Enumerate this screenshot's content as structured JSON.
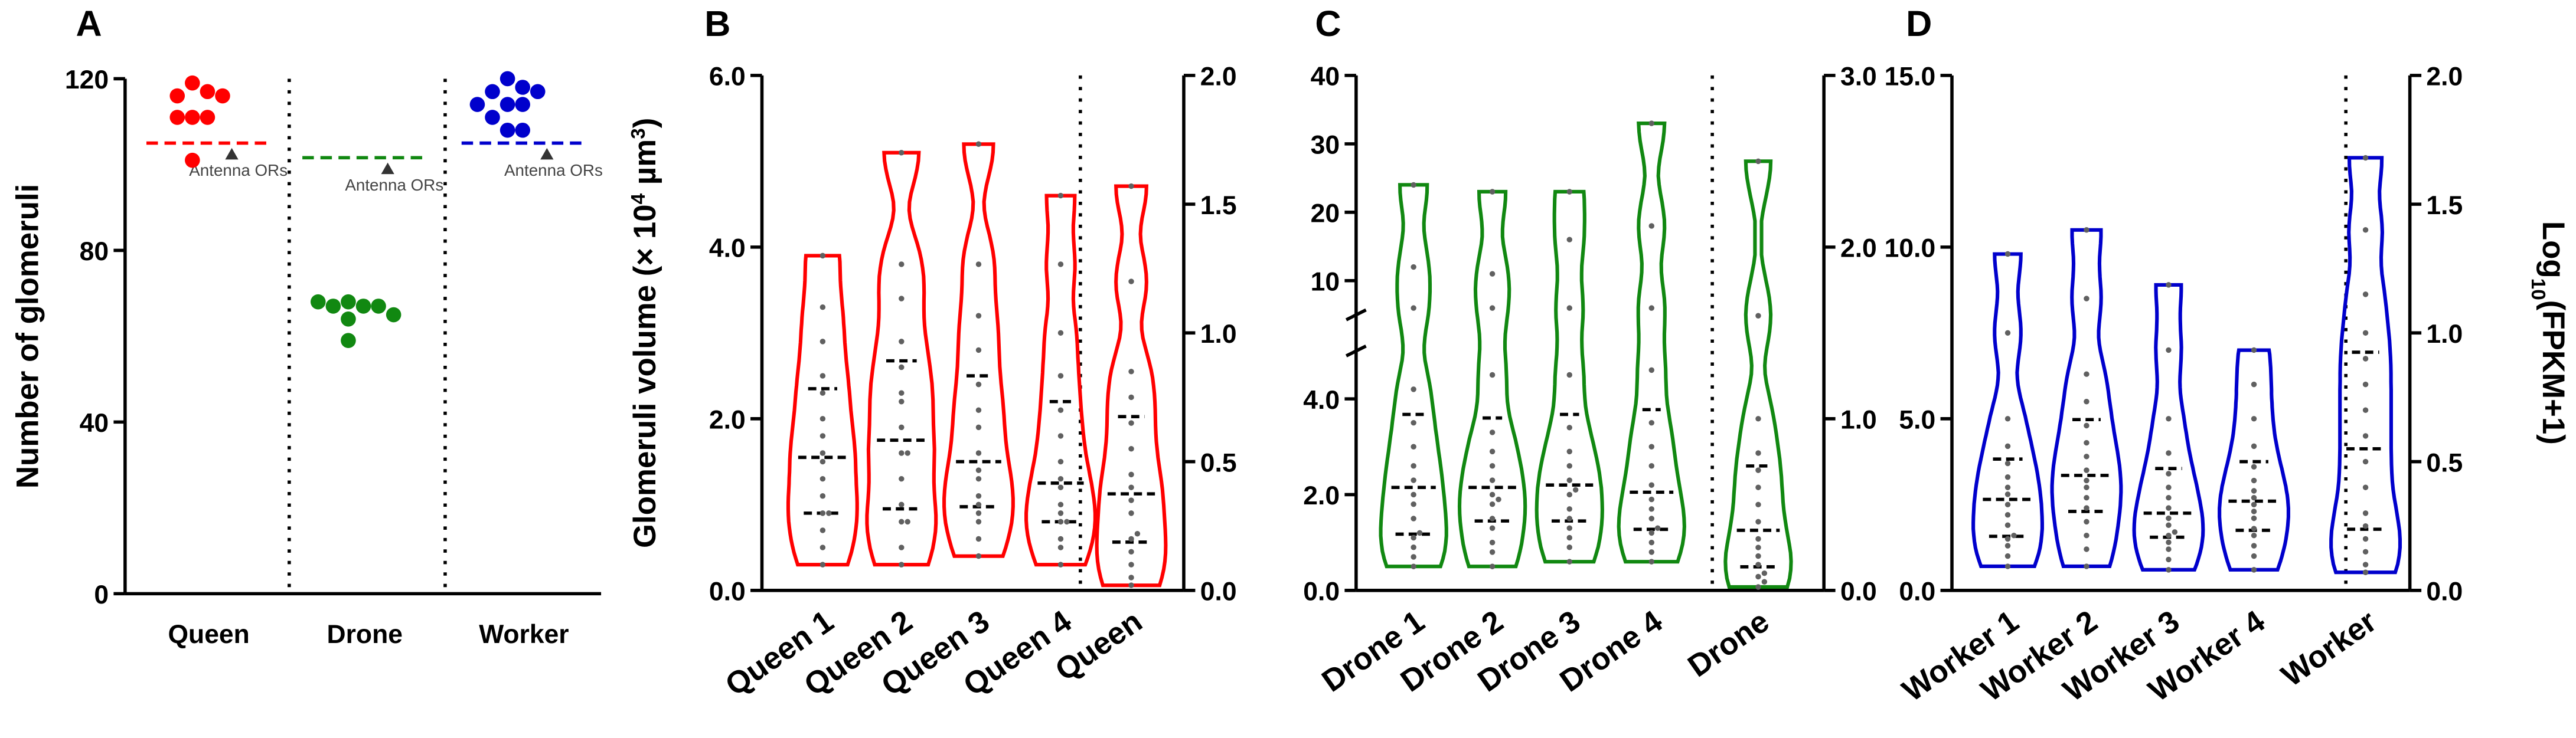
{
  "chart_data": [
    {
      "type": "dot",
      "panel": "A",
      "ylabel": "Number of glomeruli",
      "ylim": [
        0,
        120
      ],
      "yticks": [
        0,
        40,
        80,
        120
      ],
      "groups": [
        {
          "name": "Queen",
          "color": "#ff0000",
          "values": [
            119,
            117,
            116,
            116,
            111,
            111,
            111,
            101
          ],
          "reference": 105,
          "reference_label": "Antenna ORs"
        },
        {
          "name": "Drone",
          "color": "#118811",
          "values": [
            68,
            67,
            67,
            67,
            68,
            65,
            64,
            59
          ],
          "reference": 101.6,
          "reference_label": "Antenna ORs"
        },
        {
          "name": "Worker",
          "color": "#0000cc",
          "values": [
            120,
            118,
            117,
            117,
            114,
            114,
            114,
            111,
            108,
            108
          ],
          "reference": 105,
          "reference_label": "Antenna ORs"
        }
      ]
    },
    {
      "type": "violin",
      "panel": "B",
      "color": "#ff0000",
      "ylabel": [
        "Glomeruli volume (× 10",
        "4",
        " µm",
        "3",
        ")"
      ],
      "ylim": [
        0,
        6
      ],
      "yticks": [
        {
          "value": 0,
          "label": "0.0"
        },
        {
          "value": 2,
          "label": "2.0"
        },
        {
          "value": 4,
          "label": "4.0"
        },
        {
          "value": 6,
          "label": "6.0"
        }
      ],
      "y2lim": [
        0,
        2
      ],
      "y2ticks": [
        {
          "value": 0,
          "label": "0.0"
        },
        {
          "value": 0.5,
          "label": "0.5"
        },
        {
          "value": 1,
          "label": "1.0"
        },
        {
          "value": 1.5,
          "label": "1.5"
        },
        {
          "value": 2,
          "label": "2.0"
        }
      ],
      "series": [
        {
          "name": "Queen 1",
          "values": [
            0.3,
            0.5,
            0.7,
            0.9,
            0.9,
            1.1,
            1.3,
            1.5,
            1.6,
            1.8,
            2.0,
            2.3,
            2.5,
            2.9,
            3.3,
            3.9
          ]
        },
        {
          "name": "Queen 2",
          "values": [
            0.3,
            0.5,
            0.8,
            0.8,
            1.0,
            1.3,
            1.6,
            1.6,
            1.9,
            2.2,
            2.3,
            2.6,
            2.9,
            3.4,
            3.8,
            5.1
          ]
        },
        {
          "name": "Queen 3",
          "values": [
            0.4,
            0.6,
            0.8,
            0.9,
            1.0,
            1.1,
            1.3,
            1.4,
            1.6,
            1.9,
            2.1,
            2.4,
            2.8,
            3.2,
            3.8,
            5.2
          ]
        },
        {
          "name": "Queen 4",
          "values": [
            0.3,
            0.5,
            0.6,
            0.8,
            0.8,
            0.9,
            1.0,
            1.2,
            1.3,
            1.5,
            1.8,
            2.1,
            2.5,
            3.0,
            3.8,
            4.6
          ]
        },
        {
          "name": "Queen",
          "axis": "y2",
          "values": [
            0.02,
            0.05,
            0.1,
            0.15,
            0.2,
            0.22,
            0.3,
            0.35,
            0.4,
            0.45,
            0.55,
            0.65,
            0.75,
            0.85,
            1.2,
            1.57
          ]
        }
      ]
    },
    {
      "type": "violin",
      "panel": "C",
      "color": "#118811",
      "ysegments": [
        [
          0,
          5
        ],
        [
          5,
          40
        ]
      ],
      "yticks": [
        {
          "value": 0,
          "label": "0.0"
        },
        {
          "value": 2,
          "label": "2.0"
        },
        {
          "value": 4,
          "label": "4.0"
        },
        10,
        20,
        30,
        40
      ],
      "y2lim": [
        0,
        3
      ],
      "y2ticks": [
        {
          "value": 0,
          "label": "0.0"
        },
        {
          "value": 1,
          "label": "1.0"
        },
        {
          "value": 2,
          "label": "2.0"
        },
        {
          "value": 3,
          "label": "3.0"
        }
      ],
      "series": [
        {
          "name": "Drone 1",
          "values": [
            0.5,
            0.7,
            0.9,
            1.1,
            1.2,
            1.5,
            1.8,
            2.0,
            2.3,
            2.6,
            3.0,
            3.5,
            4.2,
            6,
            12,
            24
          ]
        },
        {
          "name": "Drone 2",
          "values": [
            0.5,
            0.8,
            1.0,
            1.3,
            1.5,
            1.8,
            1.9,
            2.0,
            2.3,
            2.6,
            2.9,
            3.3,
            4.5,
            6,
            11,
            23
          ]
        },
        {
          "name": "Drone 3",
          "values": [
            0.6,
            0.9,
            1.1,
            1.3,
            1.5,
            1.7,
            2.0,
            2.1,
            2.3,
            2.6,
            2.9,
            3.4,
            4.5,
            6,
            16,
            23
          ]
        },
        {
          "name": "Drone 4",
          "values": [
            0.6,
            0.8,
            1.0,
            1.2,
            1.3,
            1.5,
            1.7,
            1.9,
            2.2,
            2.6,
            3.0,
            3.5,
            4.6,
            6,
            18,
            33
          ]
        },
        {
          "name": "Drone",
          "axis": "y2",
          "values": [
            0.02,
            0.05,
            0.08,
            0.1,
            0.15,
            0.2,
            0.25,
            0.3,
            0.4,
            0.5,
            0.6,
            0.7,
            0.8,
            1.0,
            1.6,
            2.5
          ]
        }
      ]
    },
    {
      "type": "violin",
      "panel": "D",
      "color": "#0000cc",
      "y2label": [
        "Log",
        "10",
        "(FPKM+1)"
      ],
      "ylim": [
        0,
        15
      ],
      "yticks": [
        {
          "value": 0,
          "label": "0.0"
        },
        {
          "value": 5,
          "label": "5.0"
        },
        {
          "value": 10,
          "label": "10.0"
        },
        {
          "value": 15,
          "label": "15.0"
        }
      ],
      "y2lim": [
        0,
        2
      ],
      "y2ticks": [
        {
          "value": 0,
          "label": "0.0"
        },
        {
          "value": 0.5,
          "label": "0.5"
        },
        {
          "value": 1,
          "label": "1.0"
        },
        {
          "value": 1.5,
          "label": "1.5"
        },
        {
          "value": 2,
          "label": "2.0"
        }
      ],
      "series": [
        {
          "name": "Worker 1",
          "values": [
            0.7,
            1.0,
            1.3,
            1.5,
            1.6,
            1.9,
            2.2,
            2.5,
            2.8,
            3.0,
            3.3,
            3.7,
            4.2,
            5.0,
            7.5,
            9.8
          ]
        },
        {
          "name": "Worker 2",
          "values": [
            0.7,
            1.2,
            1.6,
            2.0,
            2.4,
            2.7,
            3.0,
            3.2,
            3.5,
            3.9,
            4.3,
            4.8,
            5.5,
            6.3,
            8.5,
            10.5
          ]
        },
        {
          "name": "Worker 3",
          "values": [
            0.6,
            0.9,
            1.2,
            1.4,
            1.6,
            1.7,
            1.9,
            2.1,
            2.4,
            2.7,
            3.0,
            3.4,
            4.0,
            5.0,
            7.0,
            8.9
          ]
        },
        {
          "name": "Worker 4",
          "values": [
            0.6,
            1.0,
            1.3,
            1.6,
            1.8,
            2.1,
            2.3,
            2.5,
            2.7,
            2.9,
            3.2,
            3.6,
            4.2,
            5.0,
            6.0,
            7.0
          ]
        },
        {
          "name": "Worker",
          "axis": "y2",
          "values": [
            0.07,
            0.1,
            0.15,
            0.2,
            0.25,
            0.3,
            0.4,
            0.5,
            0.6,
            0.7,
            0.8,
            0.9,
            1.0,
            1.15,
            1.4,
            1.68
          ]
        }
      ]
    }
  ]
}
